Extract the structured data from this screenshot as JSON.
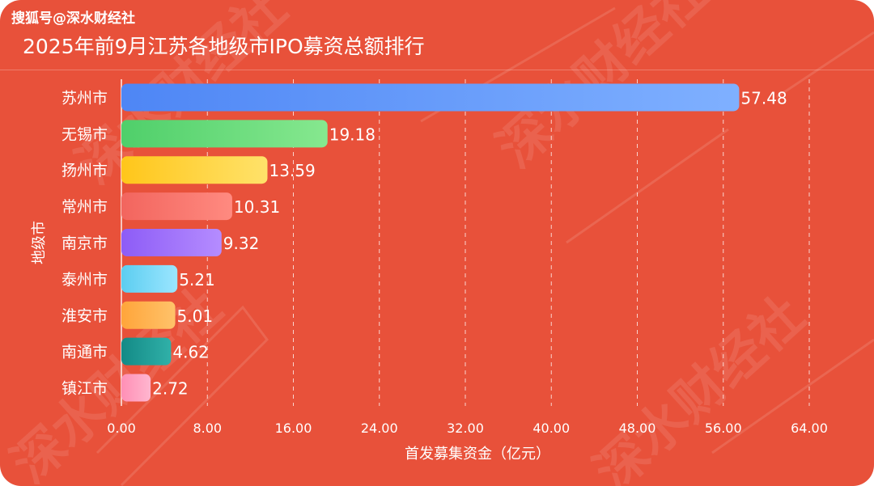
{
  "watermark": "搜狐号@深水财经社",
  "background_watermark": "深水财经社",
  "chart_data": {
    "type": "bar",
    "orientation": "horizontal",
    "title": "2025年前9月江苏各地级市IPO募资总额排行",
    "xlabel": "首发募集资金（亿元）",
    "ylabel": "地级市",
    "categories": [
      "苏州市",
      "无锡市",
      "扬州市",
      "常州市",
      "南京市",
      "泰州市",
      "淮安市",
      "南通市",
      "镇江市"
    ],
    "values": [
      57.48,
      19.18,
      13.59,
      10.31,
      9.32,
      5.21,
      5.01,
      4.62,
      2.72
    ],
    "value_labels": [
      "57.48",
      "19.18",
      "13.59",
      "10.31",
      "9.32",
      "5.21",
      "5.01",
      "4.62",
      "2.72"
    ],
    "xlim": [
      0,
      64
    ],
    "xticks": [
      0,
      8,
      16,
      24,
      32,
      40,
      48,
      56,
      64
    ],
    "xtick_labels": [
      "0.00",
      "8.00",
      "16.00",
      "24.00",
      "32.00",
      "40.00",
      "48.00",
      "56.00",
      "64.00"
    ],
    "grid": "vertical dashed",
    "bar_colors": [
      [
        "#4e86f5",
        "#7fb0ff"
      ],
      [
        "#4fcf6a",
        "#86e88f"
      ],
      [
        "#ffc61a",
        "#ffe26a"
      ],
      [
        "#f2655e",
        "#ff8a80"
      ],
      [
        "#8d5cf6",
        "#b58cff"
      ],
      [
        "#5ccdf0",
        "#9be6ff"
      ],
      [
        "#ffa53a",
        "#ffc26a"
      ],
      [
        "#138a86",
        "#30b0a8"
      ],
      [
        "#ff8fb5",
        "#ffb6cf"
      ]
    ],
    "background_color": "#e8513a"
  }
}
